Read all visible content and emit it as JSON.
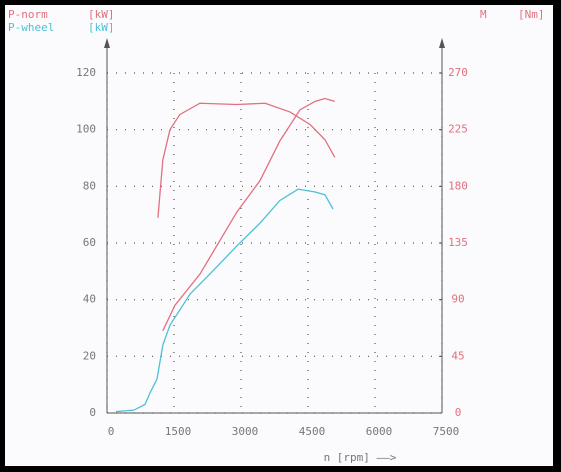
{
  "chart_data": {
    "type": "line",
    "xlabel": "n [rpm] ——>",
    "xlim": [
      0,
      7500
    ],
    "xticks": [
      0,
      1500,
      3000,
      4500,
      6000,
      7500
    ],
    "ylim": [
      0,
      120
    ],
    "yticks": [
      0,
      20,
      40,
      60,
      80,
      100,
      120
    ],
    "y2label": "M",
    "y2unit": "[Nm]",
    "y2lim": [
      0,
      270
    ],
    "y2ticks": [
      0,
      45,
      90,
      135,
      180,
      225,
      270
    ],
    "grid": true,
    "series": [
      {
        "name": "P-norm",
        "unit": "[kW]",
        "color": "#e2707e",
        "x": [
          1250,
          1520,
          2080,
          2910,
          3425,
          3870,
          4320,
          4660,
          4880,
          5100
        ],
        "values": [
          29,
          38,
          49,
          71,
          82,
          96,
          107,
          110,
          111,
          110
        ]
      },
      {
        "name": "P-wheel",
        "unit": "[kW]",
        "color": "#4cc0d8",
        "x": [
          200,
          600,
          850,
          960,
          1120,
          1250,
          1410,
          1860,
          2300,
          2910,
          3425,
          3870,
          4280,
          4660,
          4880,
          5060
        ],
        "values": [
          0.5,
          1,
          3,
          7,
          12,
          24,
          31,
          42,
          49,
          59,
          67,
          75,
          79,
          78,
          77,
          72
        ]
      },
      {
        "name": "M",
        "axis": "y2",
        "color": "#e2707e",
        "x": [
          1140,
          1250,
          1410,
          1630,
          2080,
          2910,
          3540,
          4100,
          4550,
          4880,
          5100
        ],
        "values": [
          155,
          201,
          225,
          237,
          246,
          245,
          246,
          239,
          229,
          217,
          203
        ]
      }
    ]
  }
}
